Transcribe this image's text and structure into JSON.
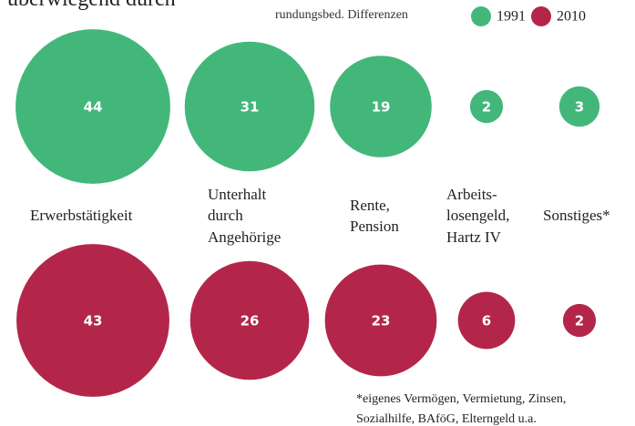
{
  "chart_data": {
    "type": "bubble",
    "title": "überwiegend durch",
    "note": "rundungsbed. Differenzen",
    "footnote": "*eigenes Vermögen, Vermietung, Zinsen,\nSozialhilfe, BAföG, Elterngeld u.a.",
    "categories": [
      "Erwerbstätigkeit",
      "Unterhalt\ndurch\nAngehörige",
      "Rente,\nPension",
      "Arbeits-\nlosengeld,\nHartz IV",
      "Sonstiges*"
    ],
    "series": [
      {
        "name": "1991",
        "color": "#43b77a",
        "values": [
          44,
          31,
          19,
          2,
          3
        ]
      },
      {
        "name": "2010",
        "color": "#b3264a",
        "values": [
          43,
          26,
          23,
          6,
          2
        ]
      }
    ]
  }
}
